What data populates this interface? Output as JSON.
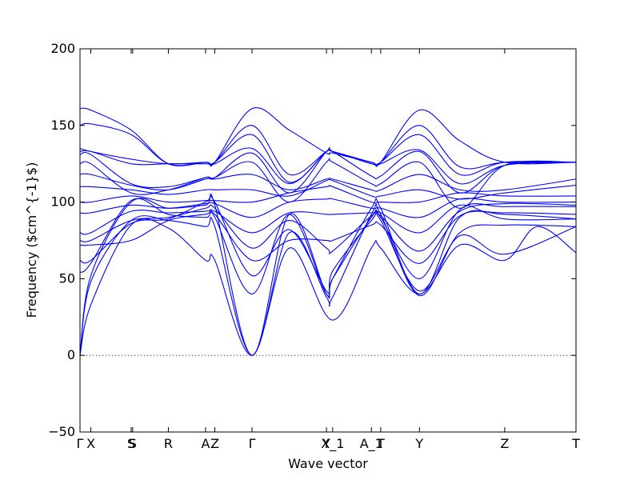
{
  "chart_data": {
    "type": "line",
    "xlabel": "Wave vector",
    "ylabel": "Frequency ($cm^{-1}$)",
    "ylim": [
      -50,
      200
    ],
    "yticks": [
      "−50",
      "0",
      "50",
      "100",
      "150",
      "200"
    ],
    "yticks_values": [
      -50,
      0,
      50,
      100,
      150,
      200
    ],
    "xticks": [
      {
        "label": "Γ",
        "x": 0
      },
      {
        "label": "X",
        "x": 0.07
      },
      {
        "label": "S",
        "x": 0.33
      },
      {
        "label": "S",
        "x": 0.34
      },
      {
        "label": "R",
        "x": 0.57
      },
      {
        "label": "A",
        "x": 0.81
      },
      {
        "label": "Z",
        "x": 0.87
      },
      {
        "label": "Γ",
        "x": 1.11
      },
      {
        "label": "Y",
        "x": 1.59
      },
      {
        "label": "X_1",
        "x": 1.63
      },
      {
        "label": "A_1",
        "x": 1.88
      },
      {
        "label": "T",
        "x": 1.94
      },
      {
        "label": "Y",
        "x": 2.19
      },
      {
        "label": "Z",
        "x": 2.74
      },
      {
        "label": "T",
        "x": 3.2
      }
    ],
    "xlim": [
      0,
      3.2
    ],
    "zero_line": true,
    "grid": false,
    "series_color": "#0000ff",
    "series": [
      {
        "values": [
          [
            0.0,
            0
          ],
          [
            0.07,
            33
          ],
          [
            0.33,
            85
          ],
          [
            0.57,
            83
          ],
          [
            0.81,
            62
          ],
          [
            0.87,
            62
          ],
          [
            1.11,
            0
          ],
          [
            1.35,
            70
          ],
          [
            1.63,
            23
          ],
          [
            1.88,
            70
          ],
          [
            1.94,
            70
          ],
          [
            2.19,
            40
          ],
          [
            2.45,
            72
          ],
          [
            2.74,
            62
          ],
          [
            2.95,
            84
          ],
          [
            3.2,
            67
          ]
        ]
      },
      {
        "values": [
          [
            0.0,
            0
          ],
          [
            0.07,
            48
          ],
          [
            0.33,
            88
          ],
          [
            0.57,
            88
          ],
          [
            0.81,
            84
          ],
          [
            0.87,
            84
          ],
          [
            1.11,
            0
          ],
          [
            1.35,
            80
          ],
          [
            1.59,
            38
          ],
          [
            1.63,
            38
          ],
          [
            1.88,
            92
          ],
          [
            1.94,
            92
          ],
          [
            2.19,
            39
          ],
          [
            2.45,
            80
          ],
          [
            2.74,
            85
          ],
          [
            3.2,
            84
          ]
        ]
      },
      {
        "values": [
          [
            0.0,
            0
          ],
          [
            0.07,
            52
          ],
          [
            0.33,
            100
          ],
          [
            0.57,
            96
          ],
          [
            0.81,
            98
          ],
          [
            0.87,
            98
          ],
          [
            1.11,
            0
          ],
          [
            1.35,
            92
          ],
          [
            1.59,
            40
          ],
          [
            1.63,
            50
          ],
          [
            1.88,
            96
          ],
          [
            1.94,
            96
          ],
          [
            2.19,
            40
          ],
          [
            2.45,
            90
          ],
          [
            2.74,
            92
          ],
          [
            3.2,
            89
          ]
        ]
      },
      {
        "values": [
          [
            0.0,
            54
          ],
          [
            0.07,
            60
          ],
          [
            0.33,
            101
          ],
          [
            0.57,
            92
          ],
          [
            0.81,
            90
          ],
          [
            0.87,
            90
          ],
          [
            1.11,
            40
          ],
          [
            1.35,
            92
          ],
          [
            1.59,
            40
          ],
          [
            1.63,
            55
          ],
          [
            1.88,
            88
          ],
          [
            1.94,
            88
          ],
          [
            2.19,
            42
          ],
          [
            2.45,
            78
          ],
          [
            2.74,
            66
          ],
          [
            3.2,
            84
          ]
        ]
      },
      {
        "values": [
          [
            0.0,
            62
          ],
          [
            0.07,
            62
          ],
          [
            0.33,
            86
          ],
          [
            0.57,
            89
          ],
          [
            0.81,
            100
          ],
          [
            0.87,
            100
          ],
          [
            1.11,
            52
          ],
          [
            1.35,
            82
          ],
          [
            1.59,
            42
          ],
          [
            1.63,
            50
          ],
          [
            1.88,
            90
          ],
          [
            1.94,
            90
          ],
          [
            2.19,
            50
          ],
          [
            2.45,
            95
          ],
          [
            2.74,
            97
          ],
          [
            3.2,
            97
          ]
        ]
      },
      {
        "values": [
          [
            0.0,
            72
          ],
          [
            0.07,
            72
          ],
          [
            0.33,
            75
          ],
          [
            0.57,
            88
          ],
          [
            0.81,
            92
          ],
          [
            0.87,
            92
          ],
          [
            1.11,
            62
          ],
          [
            1.35,
            75
          ],
          [
            1.59,
            75
          ],
          [
            1.63,
            75
          ],
          [
            1.88,
            85
          ],
          [
            1.94,
            85
          ],
          [
            2.19,
            60
          ],
          [
            2.45,
            91
          ],
          [
            2.74,
            93
          ],
          [
            3.2,
            92
          ]
        ]
      },
      {
        "values": [
          [
            0.0,
            75
          ],
          [
            0.07,
            75
          ],
          [
            0.33,
            88
          ],
          [
            0.57,
            90
          ],
          [
            0.81,
            96
          ],
          [
            0.87,
            96
          ],
          [
            1.11,
            70
          ],
          [
            1.35,
            88
          ],
          [
            1.59,
            70
          ],
          [
            1.63,
            68
          ],
          [
            1.88,
            91
          ],
          [
            1.94,
            91
          ],
          [
            2.19,
            68
          ],
          [
            2.45,
            94
          ],
          [
            2.74,
            99
          ],
          [
            3.2,
            98
          ]
        ]
      },
      {
        "values": [
          [
            0.0,
            80
          ],
          [
            0.07,
            80
          ],
          [
            0.33,
            94
          ],
          [
            0.57,
            93
          ],
          [
            0.81,
            94
          ],
          [
            0.87,
            94
          ],
          [
            1.11,
            80
          ],
          [
            1.35,
            93
          ],
          [
            1.59,
            92
          ],
          [
            1.63,
            92
          ],
          [
            1.88,
            93
          ],
          [
            1.94,
            93
          ],
          [
            2.19,
            80
          ],
          [
            2.45,
            98
          ],
          [
            2.74,
            89
          ],
          [
            3.2,
            89
          ]
        ]
      },
      {
        "values": [
          [
            0.0,
            93
          ],
          [
            0.07,
            93
          ],
          [
            0.33,
            98
          ],
          [
            0.57,
            96
          ],
          [
            0.81,
            99
          ],
          [
            0.87,
            99
          ],
          [
            1.11,
            90
          ],
          [
            1.35,
            100
          ],
          [
            1.59,
            102
          ],
          [
            1.63,
            102
          ],
          [
            1.88,
            96
          ],
          [
            1.94,
            96
          ],
          [
            2.19,
            90
          ],
          [
            2.45,
            102
          ],
          [
            2.74,
            100
          ],
          [
            3.2,
            100
          ]
        ]
      },
      {
        "values": [
          [
            0.0,
            100
          ],
          [
            0.07,
            100
          ],
          [
            0.33,
            104
          ],
          [
            0.57,
            100
          ],
          [
            0.81,
            101
          ],
          [
            0.87,
            101
          ],
          [
            1.11,
            100
          ],
          [
            1.35,
            106
          ],
          [
            1.59,
            110
          ],
          [
            1.63,
            110
          ],
          [
            1.88,
            100
          ],
          [
            1.94,
            100
          ],
          [
            2.19,
            100
          ],
          [
            2.45,
            106
          ],
          [
            2.74,
            104
          ],
          [
            3.2,
            104
          ]
        ]
      },
      {
        "values": [
          [
            0.0,
            110
          ],
          [
            0.07,
            110
          ],
          [
            0.33,
            108
          ],
          [
            0.57,
            105
          ],
          [
            0.81,
            108
          ],
          [
            0.87,
            108
          ],
          [
            1.11,
            108
          ],
          [
            1.35,
            104
          ],
          [
            1.59,
            114
          ],
          [
            1.63,
            114
          ],
          [
            1.88,
            104
          ],
          [
            1.94,
            104
          ],
          [
            2.19,
            108
          ],
          [
            2.45,
            102
          ],
          [
            2.74,
            106
          ],
          [
            3.2,
            111
          ]
        ]
      },
      {
        "values": [
          [
            0.0,
            118
          ],
          [
            0.07,
            118
          ],
          [
            0.33,
            111
          ],
          [
            0.57,
            108
          ],
          [
            0.81,
            115
          ],
          [
            0.87,
            115
          ],
          [
            1.11,
            118
          ],
          [
            1.35,
            108
          ],
          [
            1.59,
            115
          ],
          [
            1.63,
            115
          ],
          [
            1.88,
            108
          ],
          [
            1.94,
            108
          ],
          [
            2.19,
            118
          ],
          [
            2.45,
            108
          ],
          [
            2.74,
            108
          ],
          [
            3.2,
            115
          ]
        ]
      },
      {
        "values": [
          [
            0.0,
            125
          ],
          [
            0.07,
            125
          ],
          [
            0.33,
            106
          ],
          [
            0.57,
            108
          ],
          [
            0.81,
            116
          ],
          [
            0.87,
            116
          ],
          [
            1.11,
            126
          ],
          [
            1.35,
            100
          ],
          [
            1.59,
            126
          ],
          [
            1.63,
            126
          ],
          [
            1.88,
            112
          ],
          [
            1.94,
            112
          ],
          [
            2.19,
            126
          ],
          [
            2.45,
            96
          ],
          [
            2.74,
            124
          ],
          [
            3.2,
            126
          ]
        ]
      },
      {
        "values": [
          [
            0.0,
            131
          ],
          [
            0.07,
            131
          ],
          [
            0.33,
            112
          ],
          [
            0.57,
            110
          ],
          [
            0.81,
            116
          ],
          [
            0.87,
            116
          ],
          [
            1.11,
            132
          ],
          [
            1.35,
            106
          ],
          [
            1.59,
            133
          ],
          [
            1.63,
            133
          ],
          [
            1.88,
            117
          ],
          [
            1.94,
            117
          ],
          [
            2.19,
            133
          ],
          [
            2.45,
            106
          ],
          [
            2.74,
            124
          ],
          [
            3.2,
            126
          ]
        ]
      },
      {
        "values": [
          [
            0.0,
            133
          ],
          [
            0.07,
            133
          ],
          [
            0.33,
            125
          ],
          [
            0.57,
            125
          ],
          [
            0.81,
            125
          ],
          [
            0.87,
            125
          ],
          [
            1.11,
            135
          ],
          [
            1.35,
            112
          ],
          [
            1.59,
            133
          ],
          [
            1.63,
            133
          ],
          [
            1.88,
            125
          ],
          [
            1.94,
            125
          ],
          [
            2.19,
            134
          ],
          [
            2.45,
            112
          ],
          [
            2.74,
            124
          ],
          [
            3.2,
            126
          ]
        ]
      },
      {
        "values": [
          [
            0.0,
            135
          ],
          [
            0.07,
            133
          ],
          [
            0.33,
            128
          ],
          [
            0.57,
            125
          ],
          [
            0.81,
            126
          ],
          [
            0.87,
            126
          ],
          [
            1.11,
            144
          ],
          [
            1.35,
            113
          ],
          [
            1.59,
            133
          ],
          [
            1.63,
            133
          ],
          [
            1.88,
            126
          ],
          [
            1.94,
            126
          ],
          [
            2.19,
            144
          ],
          [
            2.45,
            118
          ],
          [
            2.74,
            126
          ],
          [
            3.2,
            126
          ]
        ]
      },
      {
        "values": [
          [
            0.0,
            150
          ],
          [
            0.07,
            151
          ],
          [
            0.33,
            144
          ],
          [
            0.57,
            125
          ],
          [
            0.81,
            126
          ],
          [
            0.87,
            126
          ],
          [
            1.11,
            150
          ],
          [
            1.35,
            118
          ],
          [
            1.59,
            133
          ],
          [
            1.63,
            133
          ],
          [
            1.88,
            126
          ],
          [
            1.94,
            126
          ],
          [
            2.19,
            150
          ],
          [
            2.45,
            123
          ],
          [
            2.74,
            126
          ],
          [
            3.2,
            126
          ]
        ]
      },
      {
        "values": [
          [
            0.0,
            161
          ],
          [
            0.07,
            160
          ],
          [
            0.33,
            147
          ],
          [
            0.57,
            125
          ],
          [
            0.81,
            126
          ],
          [
            0.87,
            126
          ],
          [
            1.11,
            161
          ],
          [
            1.35,
            147
          ],
          [
            1.59,
            132
          ],
          [
            1.63,
            132
          ],
          [
            1.88,
            126
          ],
          [
            1.94,
            126
          ],
          [
            2.19,
            160
          ],
          [
            2.45,
            140
          ],
          [
            2.74,
            126
          ],
          [
            3.2,
            126
          ]
        ]
      }
    ]
  }
}
